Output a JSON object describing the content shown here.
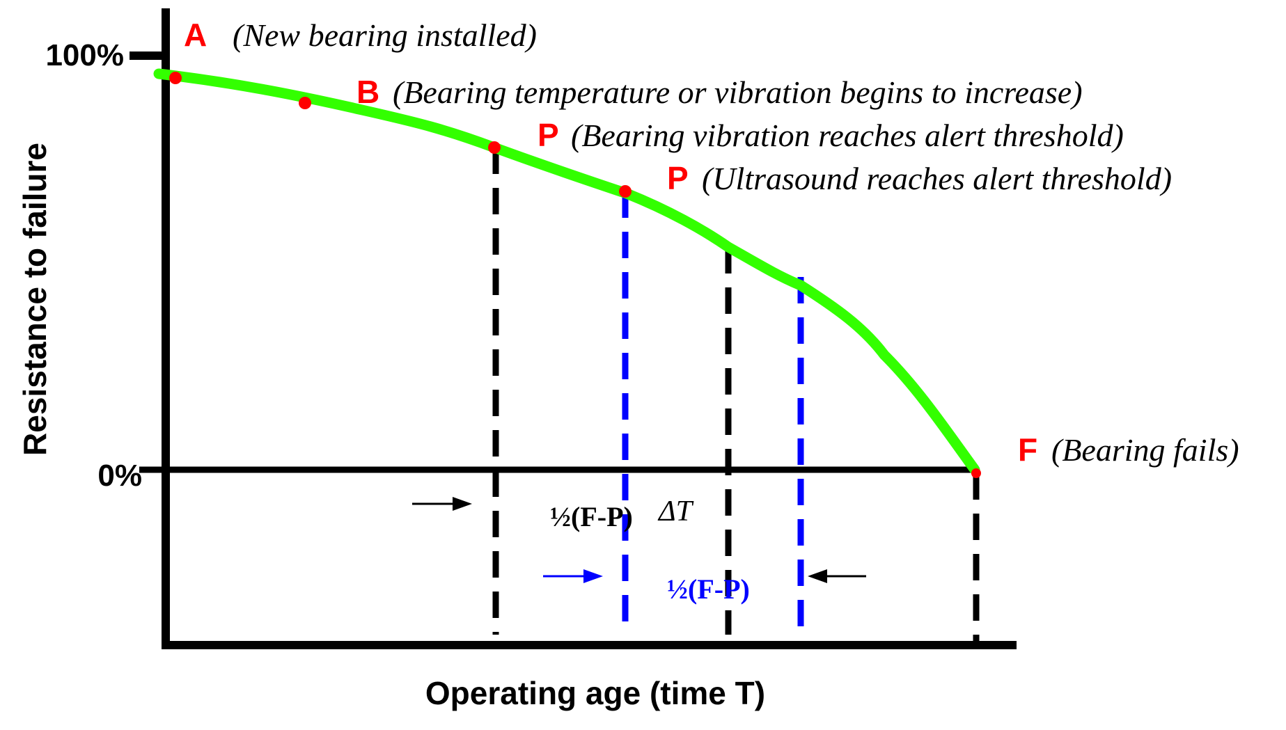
{
  "axes": {
    "y_label": "Resistance to failure",
    "x_label": "Operating age (time T)",
    "tick_top": "100%",
    "tick_zero": "0%"
  },
  "points": [
    {
      "letter": "A",
      "description": "(New bearing installed)"
    },
    {
      "letter": "B",
      "description": "(Bearing temperature or vibration begins to increase)"
    },
    {
      "letter": "P",
      "description": "(Bearing vibration reaches alert threshold)"
    },
    {
      "letter": "P",
      "description": "(Ultrasound reaches alert threshold)"
    },
    {
      "letter": "F",
      "description": "(Bearing fails)"
    }
  ],
  "intervals": {
    "half_fp_black": "½(F-P)",
    "delta_t": "ΔT",
    "half_fp_blue": "½(F-P)"
  },
  "colors": {
    "curve": "#33ff00",
    "point": "#ff0000",
    "label_letter": "#ff0000",
    "axis": "#000000",
    "blue_line": "#0000ff"
  }
}
